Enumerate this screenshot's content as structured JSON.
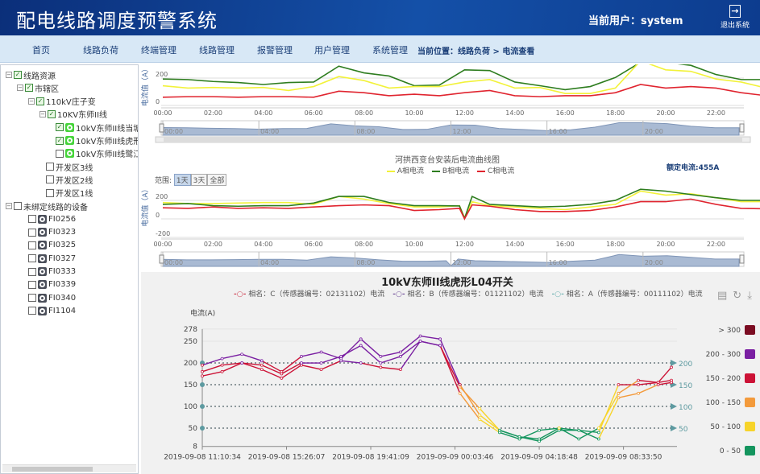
{
  "header": {
    "title": "配电线路调度预警系统",
    "user_label": "当前用户：system",
    "logout_label": "退出系统"
  },
  "nav": {
    "items": [
      "首页",
      "线路负荷",
      "终端管理",
      "线路管理",
      "报警管理",
      "用户管理",
      "系统管理"
    ],
    "breadcrumb": "当前位置：线路负荷 > 电流查看"
  },
  "tree": [
    {
      "label": "线路资源",
      "checked": true
    },
    {
      "label": "市辖区",
      "checked": true
    },
    {
      "label": "110kV庄子变",
      "checked": true
    },
    {
      "label": "10KV东师II线",
      "checked": true
    },
    {
      "label": "10kV东师II线当塘L0",
      "checked": true
    },
    {
      "label": "10kV东师II线虎形L0",
      "checked": true
    },
    {
      "label": "10kV东师II线鹭江L0",
      "checked": false
    },
    {
      "label": "开发区3线",
      "checked": false
    },
    {
      "label": "开发区2线",
      "checked": false
    },
    {
      "label": "开发区1线",
      "checked": false
    },
    {
      "label": "未绑定线路的设备",
      "checked": false
    },
    {
      "label": "FI0256",
      "checked": false
    },
    {
      "label": "FI0323",
      "checked": false
    },
    {
      "label": "FI0325",
      "checked": false
    },
    {
      "label": "FI0327",
      "checked": false
    },
    {
      "label": "FI0333",
      "checked": false
    },
    {
      "label": "FI0339",
      "checked": false
    },
    {
      "label": "FI0340",
      "checked": false
    },
    {
      "label": "FI1104",
      "checked": false
    }
  ],
  "chart_data": [
    {
      "type": "line",
      "title": "",
      "ylabel": "电流值（A）",
      "yticks": [
        "200",
        "0"
      ],
      "ylim": [
        0,
        330
      ],
      "xticks": [
        "00:00",
        "02:00",
        "04:00",
        "06:00",
        "08:00",
        "10:00",
        "12:00",
        "14:00",
        "16:00",
        "18:00",
        "20:00",
        "22:00"
      ],
      "navigator_ticks": [
        "00:00",
        "04:00",
        "08:00",
        "12:00",
        "16:00",
        "20:00"
      ],
      "x_hours": [
        0,
        1,
        2,
        3,
        4,
        5,
        6,
        7,
        8,
        9,
        10,
        11,
        12,
        13,
        14,
        15,
        16,
        17,
        18,
        19,
        20,
        21,
        22,
        23,
        24
      ],
      "series": [
        {
          "color": "#2e7d1f",
          "values": [
            193,
            189,
            175,
            167,
            153,
            167,
            171,
            287,
            238,
            215,
            144,
            149,
            260,
            255,
            171,
            144,
            115,
            138,
            204,
            315,
            315,
            293,
            226,
            189,
            189
          ]
        },
        {
          "color": "#f2f23a",
          "values": [
            144,
            127,
            131,
            127,
            131,
            109,
            138,
            211,
            182,
            127,
            138,
            138,
            171,
            189,
            127,
            131,
            87,
            87,
            127,
            326,
            260,
            249,
            193,
            171,
            127
          ]
        },
        {
          "color": "#e0242f",
          "values": [
            60,
            64,
            64,
            60,
            64,
            64,
            60,
            104,
            93,
            71,
            82,
            71,
            93,
            109,
            71,
            64,
            71,
            71,
            93,
            153,
            127,
            138,
            127,
            93,
            71
          ]
        }
      ]
    },
    {
      "type": "line",
      "title": "河拱西变台安装后电流曲线图",
      "ylabel": "电流值（A）",
      "yticks": [
        "200",
        "0",
        "-200"
      ],
      "ylim": [
        -200,
        330
      ],
      "rated_current": "额定电流:455A",
      "range_label": "范围:",
      "range_buttons": [
        "1天",
        "3天",
        "全部"
      ],
      "range_selected": "1天",
      "xticks": [
        "00:00",
        "02:00",
        "04:00",
        "06:00",
        "08:00",
        "10:00",
        "12:00",
        "14:00",
        "16:00",
        "18:00",
        "20:00",
        "22:00"
      ],
      "navigator_ticks": [
        "00:00",
        "04:00",
        "08:00",
        "12:00",
        "16:00",
        "20:00"
      ],
      "x_hours": [
        0,
        1,
        2,
        3,
        4,
        5,
        6,
        7,
        8,
        9,
        10,
        11,
        11.8,
        12,
        12.3,
        13,
        14,
        15,
        16,
        17,
        18,
        19,
        20,
        21,
        22,
        23,
        24
      ],
      "series": [
        {
          "name": "A相电流",
          "color": "#f2f23a",
          "values": [
            177,
            166,
            166,
            171,
            177,
            177,
            157,
            243,
            214,
            166,
            129,
            129,
            143,
            14,
            186,
            143,
            129,
            114,
            100,
            129,
            157,
            300,
            257,
            271,
            229,
            186,
            186
          ]
        },
        {
          "name": "B相电流",
          "color": "#2e7d1f",
          "values": [
            157,
            166,
            143,
            137,
            143,
            143,
            171,
            243,
            243,
            177,
            143,
            143,
            140,
            5,
            243,
            157,
            143,
            129,
            137,
            157,
            200,
            320,
            300,
            263,
            229,
            200,
            200
          ]
        },
        {
          "name": "C相电流",
          "color": "#e0242f",
          "values": [
            120,
            114,
            129,
            114,
            120,
            114,
            129,
            143,
            151,
            143,
            91,
            100,
            114,
            0,
            151,
            137,
            100,
            80,
            80,
            91,
            129,
            186,
            186,
            214,
            157,
            114,
            109
          ]
        }
      ]
    },
    {
      "type": "line",
      "title": "10kV东师II线虎形L04开关",
      "ylabel": "电流(A)",
      "yticks": [
        8,
        50,
        100,
        150,
        200,
        250,
        278
      ],
      "ylim": [
        8,
        278
      ],
      "xticks": [
        "2019-09-08 11:10:34",
        "2019-09-08 15:26:07",
        "2019-09-08 19:41:09",
        "2019-09-09 00:03:46",
        "2019-09-09 04:18:48",
        "2019-09-09 08:33:50"
      ],
      "x": [
        "2019-09-08 11:10",
        "2019-09-08 12:10",
        "2019-09-08 13:10",
        "2019-09-08 14:10",
        "2019-09-08 15:10",
        "2019-09-08 16:10",
        "2019-09-08 17:10",
        "2019-09-08 18:10",
        "2019-09-08 19:10",
        "2019-09-08 20:10",
        "2019-09-08 21:10",
        "2019-09-08 22:10",
        "2019-09-08 23:10",
        "2019-09-09 00:10",
        "2019-09-09 01:10",
        "2019-09-09 02:10",
        "2019-09-09 03:10",
        "2019-09-09 04:10",
        "2019-09-09 05:10",
        "2019-09-09 06:10",
        "2019-09-09 07:10",
        "2019-09-09 08:10",
        "2019-09-09 09:10",
        "2019-09-09 10:10",
        "2019-09-09 10:50"
      ],
      "mark_lines": [
        200,
        150,
        100,
        50
      ],
      "series": [
        {
          "name": "相名：C（传感器编号：02131102）电流",
          "legend_color": "#d04a5a",
          "values": [
            170,
            180,
            200,
            185,
            165,
            195,
            185,
            205,
            200,
            190,
            185,
            250,
            240,
            145,
            95,
            45,
            30,
            20,
            45,
            45,
            40,
            150,
            150,
            155,
            190
          ]
        },
        {
          "name": "相名：B（传感器编号：01121102）电流",
          "legend_color": "#7a5aa0",
          "values": [
            195,
            210,
            220,
            205,
            180,
            215,
            225,
            210,
            255,
            215,
            225,
            262,
            255,
            150,
            80,
            45,
            30,
            25,
            50,
            25,
            50,
            130,
            160,
            155,
            160
          ]
        },
        {
          "name": "相名：A（传感器编号：00111102）电流",
          "legend_color": "#79b8b8",
          "values": [
            180,
            195,
            200,
            195,
            175,
            200,
            200,
            215,
            240,
            200,
            215,
            250,
            240,
            130,
            70,
            40,
            25,
            45,
            50,
            45,
            25,
            120,
            130,
            150,
            155
          ]
        }
      ],
      "visual_map": [
        {
          "label": "> 300",
          "min": 300,
          "max": 1000,
          "color": "#7b0c22"
        },
        {
          "label": "200 - 300",
          "min": 200,
          "max": 300,
          "color": "#7a1fa2"
        },
        {
          "label": "150 - 200",
          "min": 150,
          "max": 200,
          "color": "#cc1236"
        },
        {
          "label": "100 - 150",
          "min": 100,
          "max": 150,
          "color": "#f39a3b"
        },
        {
          "label": "50 - 100",
          "min": 50,
          "max": 100,
          "color": "#f7d42a"
        },
        {
          "label": "0 - 50",
          "min": 0,
          "max": 50,
          "color": "#14955e"
        }
      ],
      "toolbox": [
        "data-view-icon",
        "refresh-icon",
        "download-icon"
      ]
    }
  ]
}
